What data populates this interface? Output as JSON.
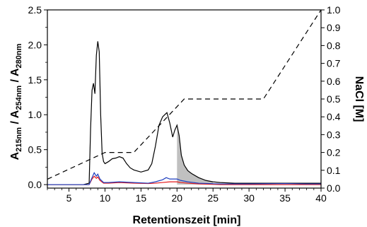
{
  "chart_data": {
    "type": "line",
    "title": "",
    "xlabel": "Retentionszeit [min]",
    "ylabel_left": {
      "parts": [
        "A",
        "215nm",
        " / A",
        "254nm",
        " / A",
        "280nm"
      ]
    },
    "ylabel_right": "NaCl [M]",
    "xlim": [
      2,
      40
    ],
    "ylim_left": [
      -0.05,
      2.5
    ],
    "ylim_right": [
      0,
      1.0
    ],
    "xticks": [
      5,
      10,
      15,
      20,
      25,
      30,
      35,
      40
    ],
    "xtick_labels": [
      "5",
      "10",
      "15",
      "20",
      "25",
      "30",
      "35",
      "40"
    ],
    "yticks_left": [
      0.0,
      0.5,
      1.0,
      1.5,
      2.0,
      2.5
    ],
    "ytick_labels_left": [
      "0.0",
      "0.5",
      "1.0",
      "1.5",
      "2.0",
      "2.5"
    ],
    "yticks_right": [
      0.0,
      0.1,
      0.2,
      0.3,
      0.4,
      0.5,
      0.6,
      0.7,
      0.8,
      0.9,
      1.0
    ],
    "ytick_labels_right": [
      "0.0",
      "0.1",
      "0.2",
      "0.3",
      "0.4",
      "0.5",
      "0.6",
      "0.7",
      "0.8",
      "0.9",
      "1.0"
    ],
    "grid": false,
    "legend": "none",
    "shaded_region": {
      "x_start": 20.0,
      "x_end": 25.0,
      "series": "A215",
      "color": "#c0c0c0"
    },
    "series": [
      {
        "key": "A215",
        "axis": "left",
        "color": "#000000",
        "style": "solid",
        "x": [
          2,
          7,
          7.8,
          8.0,
          8.2,
          8.4,
          8.6,
          8.8,
          9.0,
          9.2,
          9.4,
          9.6,
          9.8,
          10.0,
          10.5,
          11.0,
          11.5,
          12.0,
          12.5,
          13.0,
          13.5,
          14.0,
          15.0,
          16.0,
          16.5,
          17.0,
          17.5,
          18.0,
          18.3,
          18.6,
          19.0,
          19.4,
          19.7,
          20.0,
          20.3,
          20.6,
          21.0,
          21.5,
          22.0,
          23.0,
          24.0,
          25.0,
          26.0,
          28.0,
          30.0,
          32.0,
          35.0,
          38.0,
          40.0
        ],
        "y": [
          0.0,
          0.0,
          0.02,
          0.8,
          1.35,
          1.45,
          1.3,
          1.85,
          2.05,
          1.9,
          1.0,
          0.45,
          0.33,
          0.3,
          0.33,
          0.37,
          0.38,
          0.4,
          0.38,
          0.3,
          0.24,
          0.21,
          0.18,
          0.21,
          0.3,
          0.55,
          0.85,
          0.97,
          1.0,
          1.03,
          0.88,
          0.68,
          0.78,
          0.85,
          0.7,
          0.42,
          0.28,
          0.2,
          0.16,
          0.1,
          0.06,
          0.04,
          0.03,
          0.02,
          0.02,
          0.02,
          0.02,
          0.02,
          0.02
        ]
      },
      {
        "key": "A254",
        "axis": "left",
        "color": "#e41a1c",
        "style": "solid",
        "x": [
          2,
          7.8,
          8.2,
          8.5,
          8.8,
          9.0,
          9.3,
          9.8,
          10.5,
          12.0,
          14.0,
          16.0,
          17.0,
          18.0,
          19.0,
          20.0,
          20.5,
          21.5,
          23.0,
          26.0,
          30.0,
          35.0,
          40.0
        ],
        "y": [
          0.0,
          0.0,
          0.08,
          0.12,
          0.09,
          0.11,
          0.06,
          0.02,
          0.02,
          0.03,
          0.02,
          0.015,
          0.02,
          0.03,
          0.04,
          0.04,
          0.03,
          0.02,
          0.01,
          0.0,
          0.0,
          0.0,
          0.0
        ]
      },
      {
        "key": "A280",
        "axis": "left",
        "color": "#1f3fbf",
        "style": "solid",
        "x": [
          2,
          7.8,
          8.2,
          8.5,
          8.8,
          9.0,
          9.3,
          9.8,
          10.5,
          12.0,
          14.0,
          16.0,
          17.0,
          18.0,
          18.5,
          19.0,
          20.0,
          20.5,
          21.5,
          23.0,
          26.0,
          30.0,
          35.0,
          38.0,
          40.0
        ],
        "y": [
          0.0,
          0.0,
          0.1,
          0.17,
          0.12,
          0.15,
          0.08,
          0.03,
          0.03,
          0.04,
          0.03,
          0.02,
          0.04,
          0.07,
          0.1,
          0.08,
          0.08,
          0.06,
          0.04,
          0.02,
          0.01,
          0.01,
          0.015,
          0.01,
          0.01
        ]
      },
      {
        "key": "NaCl",
        "axis": "right",
        "color": "#000000",
        "style": "dashed",
        "x": [
          2,
          10,
          14,
          21,
          32,
          40
        ],
        "y": [
          0.05,
          0.2,
          0.2,
          0.5,
          0.5,
          1.0
        ]
      }
    ]
  }
}
